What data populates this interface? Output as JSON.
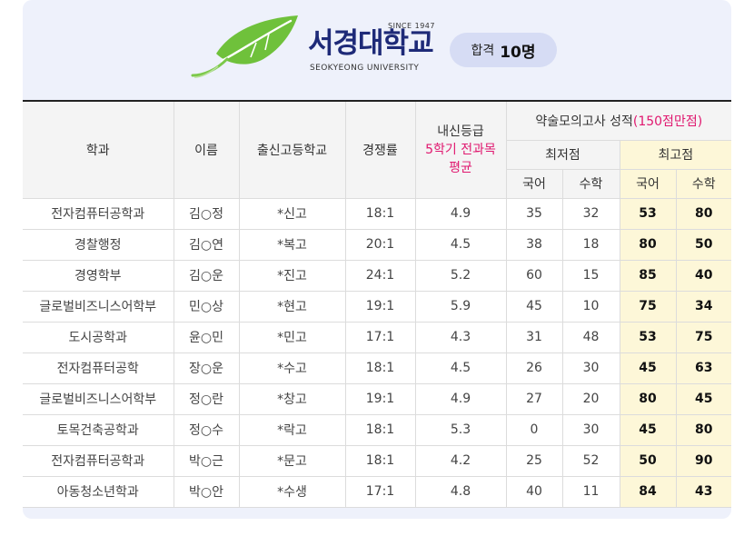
{
  "header": {
    "since": "SINCE 1947",
    "university_name": "서경대학교",
    "university_english": "SEOKYEONG UNIVERSITY",
    "pass_label": "합격",
    "pass_count": "10명",
    "brand_color": "#1e2a78",
    "leaf_color": "#6fc13b",
    "logo_icon": "leaf-icon"
  },
  "table": {
    "headers": {
      "dept": "학과",
      "name": "이름",
      "school": "출신고등학교",
      "competition": "경쟁률",
      "grade_line1": "내신등급",
      "grade_line2": "5학기 전과목",
      "grade_line3": "평균",
      "mock_title": "약술모의고사 성적",
      "mock_note": "(150점만점)",
      "min_score": "최저점",
      "max_score": "최고점",
      "korean": "국어",
      "math": "수학"
    },
    "rows": [
      {
        "dept": "전자컴퓨터공학과",
        "name": "김○정",
        "school": "*신고",
        "competition": "18:1",
        "grade": "4.9",
        "min_kor": "35",
        "min_math": "32",
        "max_kor": "53",
        "max_math": "80"
      },
      {
        "dept": "경찰행정",
        "name": "김○연",
        "school": "*복고",
        "competition": "20:1",
        "grade": "4.5",
        "min_kor": "38",
        "min_math": "18",
        "max_kor": "80",
        "max_math": "50"
      },
      {
        "dept": "경영학부",
        "name": "김○운",
        "school": "*진고",
        "competition": "24:1",
        "grade": "5.2",
        "min_kor": "60",
        "min_math": "15",
        "max_kor": "85",
        "max_math": "40"
      },
      {
        "dept": "글로벌비즈니스어학부",
        "name": "민○상",
        "school": "*현고",
        "competition": "19:1",
        "grade": "5.9",
        "min_kor": "45",
        "min_math": "10",
        "max_kor": "75",
        "max_math": "34"
      },
      {
        "dept": "도시공학과",
        "name": "윤○민",
        "school": "*민고",
        "competition": "17:1",
        "grade": "4.3",
        "min_kor": "31",
        "min_math": "48",
        "max_kor": "53",
        "max_math": "75"
      },
      {
        "dept": "전자컴퓨터공학",
        "name": "장○운",
        "school": "*수고",
        "competition": "18:1",
        "grade": "4.5",
        "min_kor": "26",
        "min_math": "30",
        "max_kor": "45",
        "max_math": "63"
      },
      {
        "dept": "글로벌비즈니스어학부",
        "name": "정○란",
        "school": "*창고",
        "competition": "19:1",
        "grade": "4.9",
        "min_kor": "27",
        "min_math": "20",
        "max_kor": "80",
        "max_math": "45"
      },
      {
        "dept": "토목건축공학과",
        "name": "정○수",
        "school": "*락고",
        "competition": "18:1",
        "grade": "5.3",
        "min_kor": "0",
        "min_math": "30",
        "max_kor": "45",
        "max_math": "80"
      },
      {
        "dept": "전자컴퓨터공학과",
        "name": "박○근",
        "school": "*문고",
        "competition": "18:1",
        "grade": "4.2",
        "min_kor": "25",
        "min_math": "52",
        "max_kor": "50",
        "max_math": "90"
      },
      {
        "dept": "아동청소년학과",
        "name": "박○안",
        "school": "*수생",
        "competition": "17:1",
        "grade": "4.8",
        "min_kor": "40",
        "min_math": "11",
        "max_kor": "84",
        "max_math": "43"
      }
    ],
    "highlight_color": "#fdf7d8",
    "accent_color": "#e0186f"
  }
}
